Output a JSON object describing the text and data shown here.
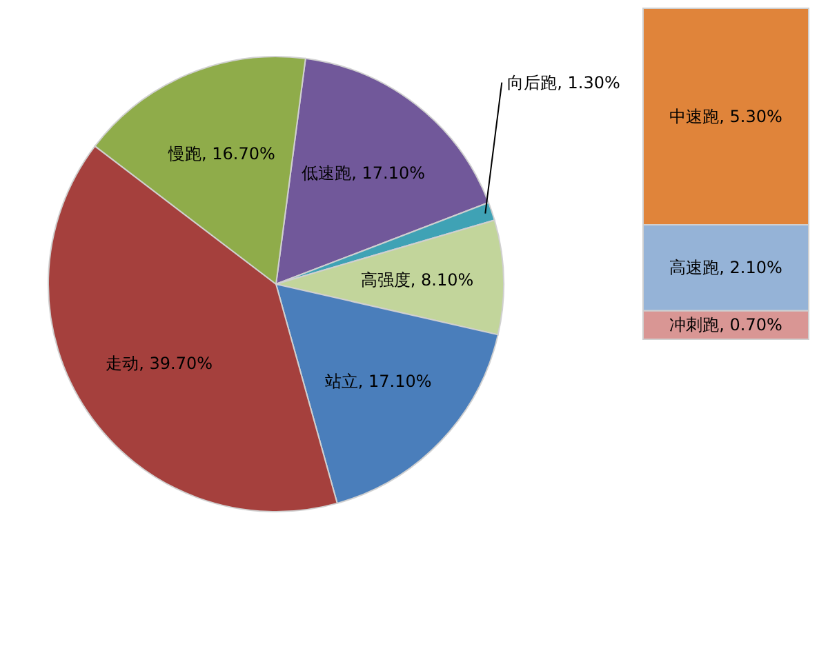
{
  "chart_data": [
    {
      "type": "pie",
      "categories": [
        "低速跑",
        "向后跑",
        "高强度",
        "站立",
        "走动",
        "慢跑"
      ],
      "values": [
        17.1,
        1.3,
        8.1,
        17.1,
        39.7,
        16.7
      ],
      "colors": [
        "#71589a",
        "#3fa2b5",
        "#c2d59b",
        "#4a7ebb",
        "#a5403d",
        "#8fac4a"
      ],
      "value_labels": [
        "17.10%",
        "1.30%",
        "8.10%",
        "17.10%",
        "39.70%",
        "16.70%"
      ]
    },
    {
      "type": "bar",
      "stacked": true,
      "categories": [
        null
      ],
      "series": [
        {
          "color": "#d99694",
          "values": [
            0.7
          ],
          "value_labels": [
            "冲刺跑, 0.70%"
          ]
        },
        {
          "color": "#95b3d7",
          "values": [
            2.1
          ],
          "value_labels": [
            "高速跑, 2.10%"
          ]
        },
        {
          "color": "#e0843a",
          "values": [
            5.3
          ],
          "value_labels": [
            "中速跑, 5.30%"
          ]
        }
      ]
    }
  ]
}
